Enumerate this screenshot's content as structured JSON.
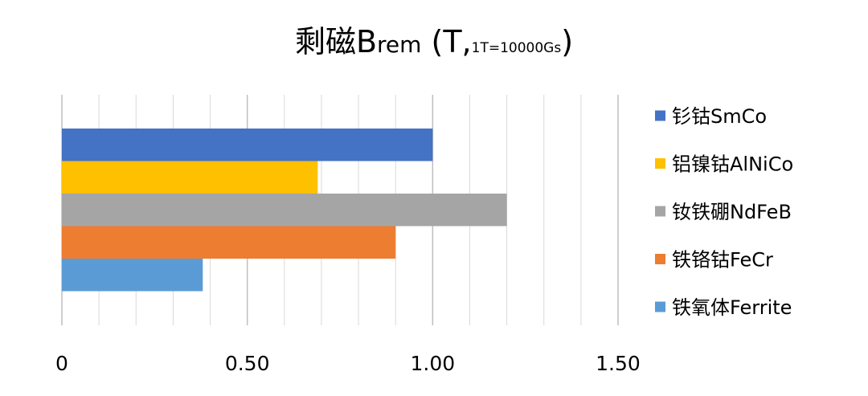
{
  "chart_data": {
    "type": "bar",
    "orientation": "horizontal",
    "title": {
      "main": "剩磁B",
      "sub": "rem",
      "open": " (T,",
      "small": "1T=10000Gs",
      "close": ")"
    },
    "categories": [
      "钐钴SmCo",
      "铝镍钴AlNiCo",
      "钕铁硼NdFeB",
      "铁铬钴FeCr",
      "铁氧体Ferrite"
    ],
    "values": [
      1.0,
      0.69,
      1.2,
      0.9,
      0.38
    ],
    "colors": [
      "#4472C4",
      "#FFC000",
      "#A5A5A5",
      "#ED7D31",
      "#5B9BD5"
    ],
    "xlim": [
      0,
      1.5
    ],
    "xticks": [
      0,
      0.5,
      1.0,
      1.5
    ],
    "xtick_labels": [
      "0",
      "0.50",
      "1.00",
      "1.50"
    ],
    "minor_grid_step": 0.1,
    "grid": true,
    "legend": "right"
  }
}
